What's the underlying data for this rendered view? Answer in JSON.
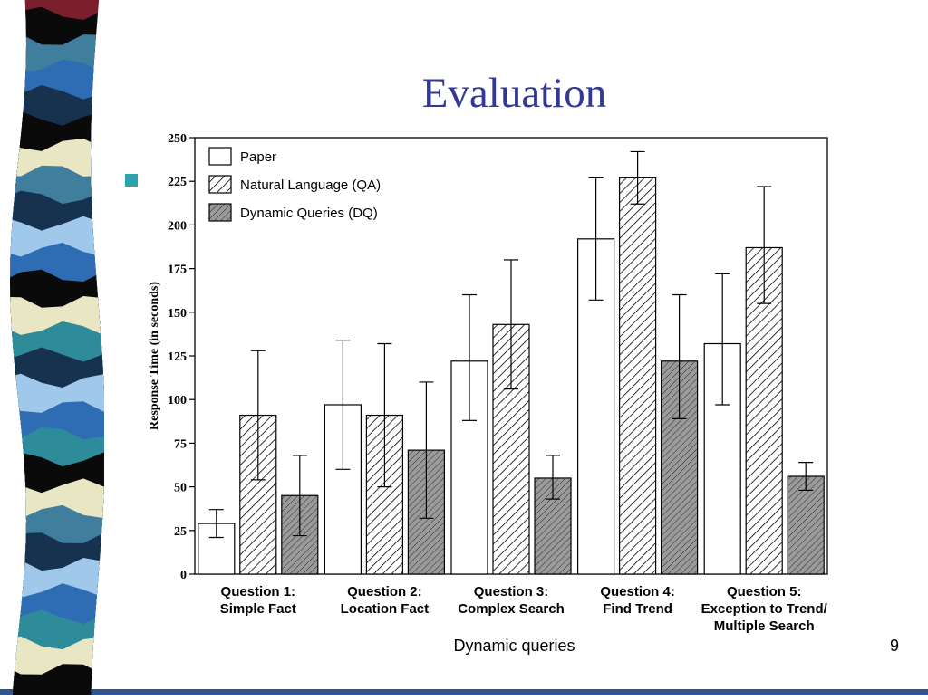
{
  "slide": {
    "title": "Evaluation",
    "footer": "Dynamic queries",
    "page_number": "9",
    "title_color": "#313896",
    "bullet_color": "#2aa3ac",
    "bottom_bar_color": "#2f5496",
    "ribbon_colors": [
      "#7b1e2e",
      "#0a0a0a",
      "#3f7e9d",
      "#2e6db4",
      "#16324f",
      "#0a0a0a",
      "#e9e6c3",
      "#3f7e9d",
      "#16324f",
      "#9fc8ea",
      "#2e6db4",
      "#0a0a0a",
      "#e9e6c3",
      "#2e8b9a",
      "#16324f",
      "#9fc8ea",
      "#2e6db4",
      "#2e8b9a",
      "#0a0a0a",
      "#e9e6c3",
      "#3f7e9d",
      "#16324f",
      "#9fc8ea",
      "#2e6db4",
      "#2e8b9a",
      "#e9e6c3",
      "#0a0a0a"
    ]
  },
  "chart_data": {
    "type": "bar",
    "title": "",
    "xlabel": "",
    "ylabel": "Response Time (in seconds)",
    "ylim": [
      0,
      250
    ],
    "ytick_step": 25,
    "grid": false,
    "legend_position": "top-left",
    "error_bars": true,
    "categories": [
      [
        "Question 1:",
        "Simple Fact"
      ],
      [
        "Question 2:",
        "Location Fact"
      ],
      [
        "Question 3:",
        "Complex Search"
      ],
      [
        "Question 4:",
        "Find Trend"
      ],
      [
        "Question 5:",
        "Exception to Trend/",
        "Multiple Search"
      ]
    ],
    "series": [
      {
        "name": "Paper",
        "style": "white",
        "values": [
          29,
          97,
          122,
          192,
          132
        ],
        "err_lo": [
          21,
          60,
          88,
          157,
          97
        ],
        "err_hi": [
          37,
          134,
          160,
          227,
          172
        ]
      },
      {
        "name": "Natural Language (QA)",
        "style": "hatch",
        "values": [
          91,
          91,
          143,
          227,
          187
        ],
        "err_lo": [
          54,
          50,
          106,
          212,
          155
        ],
        "err_hi": [
          128,
          132,
          180,
          242,
          222
        ]
      },
      {
        "name": "Dynamic Queries (DQ)",
        "style": "gray-hatch",
        "values": [
          45,
          71,
          55,
          122,
          56
        ],
        "err_lo": [
          22,
          32,
          43,
          89,
          48
        ],
        "err_hi": [
          68,
          110,
          68,
          160,
          64
        ]
      }
    ]
  }
}
